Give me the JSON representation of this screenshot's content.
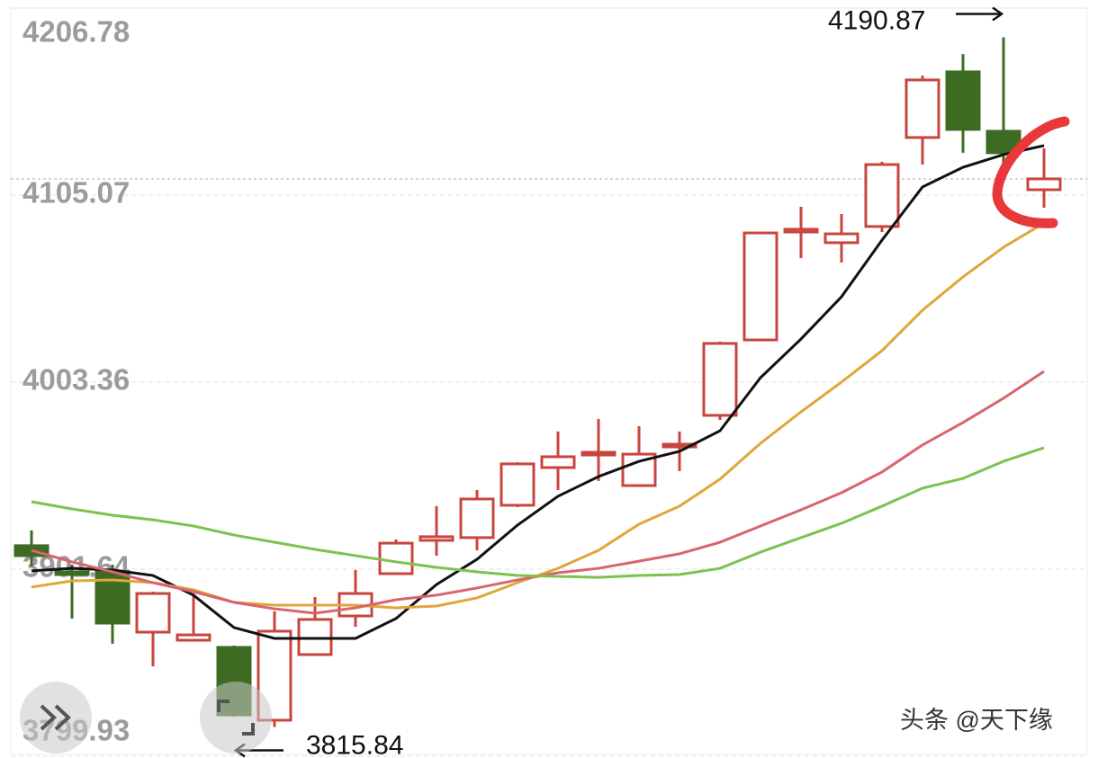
{
  "chart_data": {
    "type": "candlestick",
    "open": [
      3914.4,
      3900.2,
      3900.2,
      3867.4,
      3863.0,
      3859.1,
      3819.5,
      3855.2,
      3876.2,
      3899.2,
      3917.3,
      3918.8,
      3936.4,
      3956.9,
      3963.8,
      3947.1,
      3968.2,
      3985.3,
      4026.3,
      4085.0,
      4079.2,
      4088.0,
      4136.4,
      4172.1,
      4139.8,
      4108.0
    ],
    "high": [
      3922.7,
      3904.1,
      3904.1,
      3889.4,
      3888.4,
      3860.1,
      3878.7,
      3886.5,
      3901.2,
      3917.8,
      3935.9,
      3944.7,
      3959.8,
      3976.5,
      3983.3,
      3979.4,
      3976.5,
      4025.4,
      4084.5,
      4098.7,
      4094.8,
      4123.2,
      4170.1,
      4181.8,
      4190.87,
      4130.5
    ],
    "low": [
      3903.1,
      3874.8,
      3861.1,
      3848.8,
      3863.0,
      3821.4,
      3815.84,
      3855.2,
      3870.3,
      3899.2,
      3909.0,
      3911.9,
      3935.4,
      3944.7,
      3949.6,
      3947.1,
      3955.0,
      3982.8,
      4026.3,
      4070.8,
      4068.4,
      4085.0,
      4121.7,
      4128.1,
      4115.8,
      4098.2
    ],
    "close": [
      3909.0,
      3899.7,
      3872.3,
      3888.4,
      3865.9,
      3822.4,
      3867.9,
      3874.3,
      3888.4,
      3915.8,
      3919.3,
      3939.8,
      3958.9,
      3962.8,
      3965.2,
      3964.2,
      3969.6,
      4024.4,
      4084.5,
      4086.5,
      4084.0,
      4121.7,
      4167.7,
      4140.8,
      4128.1,
      4113.9
    ],
    "up_color": "#c8453f",
    "down_color": "#3d6b22",
    "moving_averages": [
      {
        "color": "#111111",
        "values": [
          3900.7,
          3902.1,
          3901.2,
          3898.2,
          3887.5,
          3869.9,
          3864.0,
          3864.0,
          3864.0,
          3874.8,
          3893.3,
          3907.0,
          3925.6,
          3941.3,
          3952.0,
          3960.3,
          3965.7,
          3976.9,
          4005.8,
          4026.8,
          4049.8,
          4080.6,
          4109.5,
          4120.2,
          4127.1,
          4132.0
        ]
      },
      {
        "color": "#e0a63a",
        "values": [
          3891.9,
          3895.3,
          3895.8,
          3894.3,
          3890.4,
          3883.6,
          3882.1,
          3882.1,
          3882.1,
          3880.6,
          3881.6,
          3886.0,
          3894.3,
          3902.1,
          3911.9,
          3926.1,
          3935.9,
          3950.6,
          3970.1,
          3987.2,
          4003.4,
          4020.5,
          4042.5,
          4060.6,
          4076.7,
          4089.9
        ]
      },
      {
        "color": "#d9646e",
        "values": [
          3911.9,
          3905.6,
          3900.2,
          3894.3,
          3889.4,
          3883.6,
          3880.1,
          3877.7,
          3880.6,
          3885.0,
          3887.5,
          3891.4,
          3895.8,
          3899.7,
          3902.1,
          3906.0,
          3910.0,
          3916.3,
          3925.1,
          3933.9,
          3943.2,
          3954.5,
          3969.2,
          3981.4,
          3994.6,
          4009.2
        ]
      },
      {
        "color": "#7dc24f",
        "values": [
          3938.3,
          3934.4,
          3931.0,
          3928.5,
          3925.1,
          3920.2,
          3916.3,
          3912.4,
          3909.0,
          3905.6,
          3902.6,
          3900.2,
          3898.2,
          3897.7,
          3897.2,
          3898.2,
          3898.7,
          3902.1,
          3910.9,
          3918.8,
          3926.6,
          3935.9,
          3945.7,
          3951.0,
          3960.3,
          3967.7
        ]
      }
    ],
    "ylim": [
      3799.93,
      4206.78
    ],
    "yticks": [
      4206.78,
      4105.07,
      4003.36,
      3901.64,
      3799.93
    ],
    "grid": true,
    "annotations": [
      {
        "label": "4190.87",
        "value": 4190.87,
        "arrow": "right"
      },
      {
        "label": "3815.84",
        "value": 3815.84,
        "arrow": "left"
      }
    ],
    "watermark": "头条 @天下缘"
  }
}
